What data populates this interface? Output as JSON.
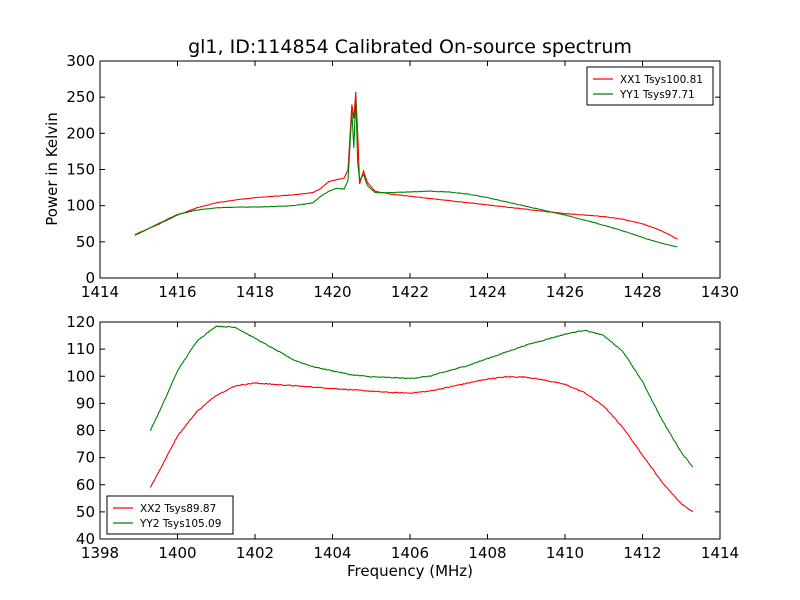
{
  "figure": {
    "title": "gl1, ID:114854 Calibrated On-source spectrum",
    "ylabel": "Power in Kelvin",
    "xlabel": "Frequency (MHz)"
  },
  "chart_data": [
    {
      "type": "line",
      "title": "gl1, ID:114854 Calibrated On-source spectrum",
      "ylabel": "Power in Kelvin",
      "xlabel": "",
      "xlim": [
        1414,
        1430
      ],
      "ylim": [
        0,
        300
      ],
      "xticks": [
        1414,
        1416,
        1418,
        1420,
        1422,
        1424,
        1426,
        1428,
        1430
      ],
      "yticks": [
        0,
        50,
        100,
        150,
        200,
        250,
        300
      ],
      "grid": false,
      "legend": "top-right",
      "series": [
        {
          "name": "XX1 Tsys100.81",
          "color": "#ff0000",
          "x": [
            1414.9,
            1415.5,
            1416,
            1416.5,
            1417,
            1417.5,
            1418,
            1418.5,
            1419,
            1419.5,
            1419.7,
            1419.9,
            1420.1,
            1420.3,
            1420.4,
            1420.5,
            1420.55,
            1420.6,
            1420.65,
            1420.7,
            1420.8,
            1420.9,
            1421.1,
            1421.5,
            1422,
            1422.5,
            1423,
            1423.5,
            1424,
            1424.5,
            1425,
            1425.5,
            1426,
            1426.5,
            1427,
            1427.5,
            1428,
            1428.5,
            1428.9
          ],
          "y": [
            60,
            74,
            87,
            97,
            104,
            108,
            111,
            113,
            115,
            118,
            124,
            133,
            136,
            138,
            150,
            240,
            220,
            257,
            200,
            130,
            148,
            132,
            120,
            116,
            113,
            110,
            107,
            104,
            101,
            98,
            95,
            92,
            89,
            87,
            85,
            81,
            75,
            65,
            54
          ]
        },
        {
          "name": "YY1 Tsys97.71",
          "color": "#008000",
          "x": [
            1414.9,
            1415.5,
            1416,
            1416.5,
            1417,
            1417.5,
            1418,
            1418.5,
            1419,
            1419.5,
            1419.7,
            1419.9,
            1420.1,
            1420.3,
            1420.4,
            1420.5,
            1420.55,
            1420.6,
            1420.65,
            1420.7,
            1420.8,
            1420.9,
            1421.1,
            1421.5,
            1422,
            1422.5,
            1423,
            1423.5,
            1424,
            1424.5,
            1425,
            1425.5,
            1426,
            1426.5,
            1427,
            1427.5,
            1428,
            1428.5,
            1428.9
          ],
          "y": [
            59,
            75,
            88,
            94,
            97,
            98,
            98,
            99,
            100,
            104,
            113,
            120,
            124,
            123,
            135,
            230,
            180,
            250,
            160,
            135,
            143,
            128,
            118,
            118,
            119,
            120,
            119,
            116,
            111,
            105,
            99,
            93,
            87,
            80,
            73,
            65,
            56,
            48,
            43
          ]
        }
      ]
    },
    {
      "type": "line",
      "title": "",
      "ylabel": "",
      "xlabel": "Frequency (MHz)",
      "xlim": [
        1398,
        1414
      ],
      "ylim": [
        40,
        120
      ],
      "xticks": [
        1398,
        1400,
        1402,
        1404,
        1406,
        1408,
        1410,
        1412,
        1414
      ],
      "yticks": [
        40,
        50,
        60,
        70,
        80,
        90,
        100,
        110,
        120
      ],
      "grid": false,
      "legend": "bottom-left",
      "series": [
        {
          "name": "XX2 Tsys89.87",
          "color": "#ff0000",
          "x": [
            1399.3,
            1399.6,
            1400,
            1400.5,
            1401,
            1401.5,
            1402,
            1402.5,
            1403,
            1403.5,
            1404,
            1404.5,
            1405,
            1405.5,
            1406,
            1406.5,
            1407,
            1407.5,
            1408,
            1408.5,
            1409,
            1409.5,
            1410,
            1410.5,
            1411,
            1411.5,
            1412,
            1412.5,
            1413,
            1413.3
          ],
          "y": [
            59,
            67,
            78,
            87,
            93,
            96.5,
            97.5,
            97,
            96.5,
            96,
            95.5,
            95,
            94.5,
            94,
            93.8,
            94.5,
            96,
            97.5,
            99,
            99.8,
            99.7,
            98.5,
            97,
            94,
            89,
            81,
            71,
            61,
            53,
            50
          ]
        },
        {
          "name": "YY2 Tsys105.09",
          "color": "#008000",
          "x": [
            1399.3,
            1399.6,
            1400,
            1400.5,
            1401,
            1401.5,
            1402,
            1402.5,
            1403,
            1403.5,
            1404,
            1404.5,
            1405,
            1405.5,
            1406,
            1406.5,
            1407,
            1407.5,
            1408,
            1408.5,
            1409,
            1409.5,
            1410,
            1410.5,
            1411,
            1411.5,
            1412,
            1412.5,
            1413,
            1413.3
          ],
          "y": [
            80,
            89,
            102,
            113,
            118.5,
            118,
            114,
            110,
            106,
            103.5,
            102,
            100.5,
            99.8,
            99.5,
            99.2,
            100,
            102,
            104,
            106.5,
            109,
            111.5,
            113.5,
            115.5,
            117,
            115,
            109,
            98,
            84,
            72,
            66.5
          ]
        }
      ]
    }
  ]
}
